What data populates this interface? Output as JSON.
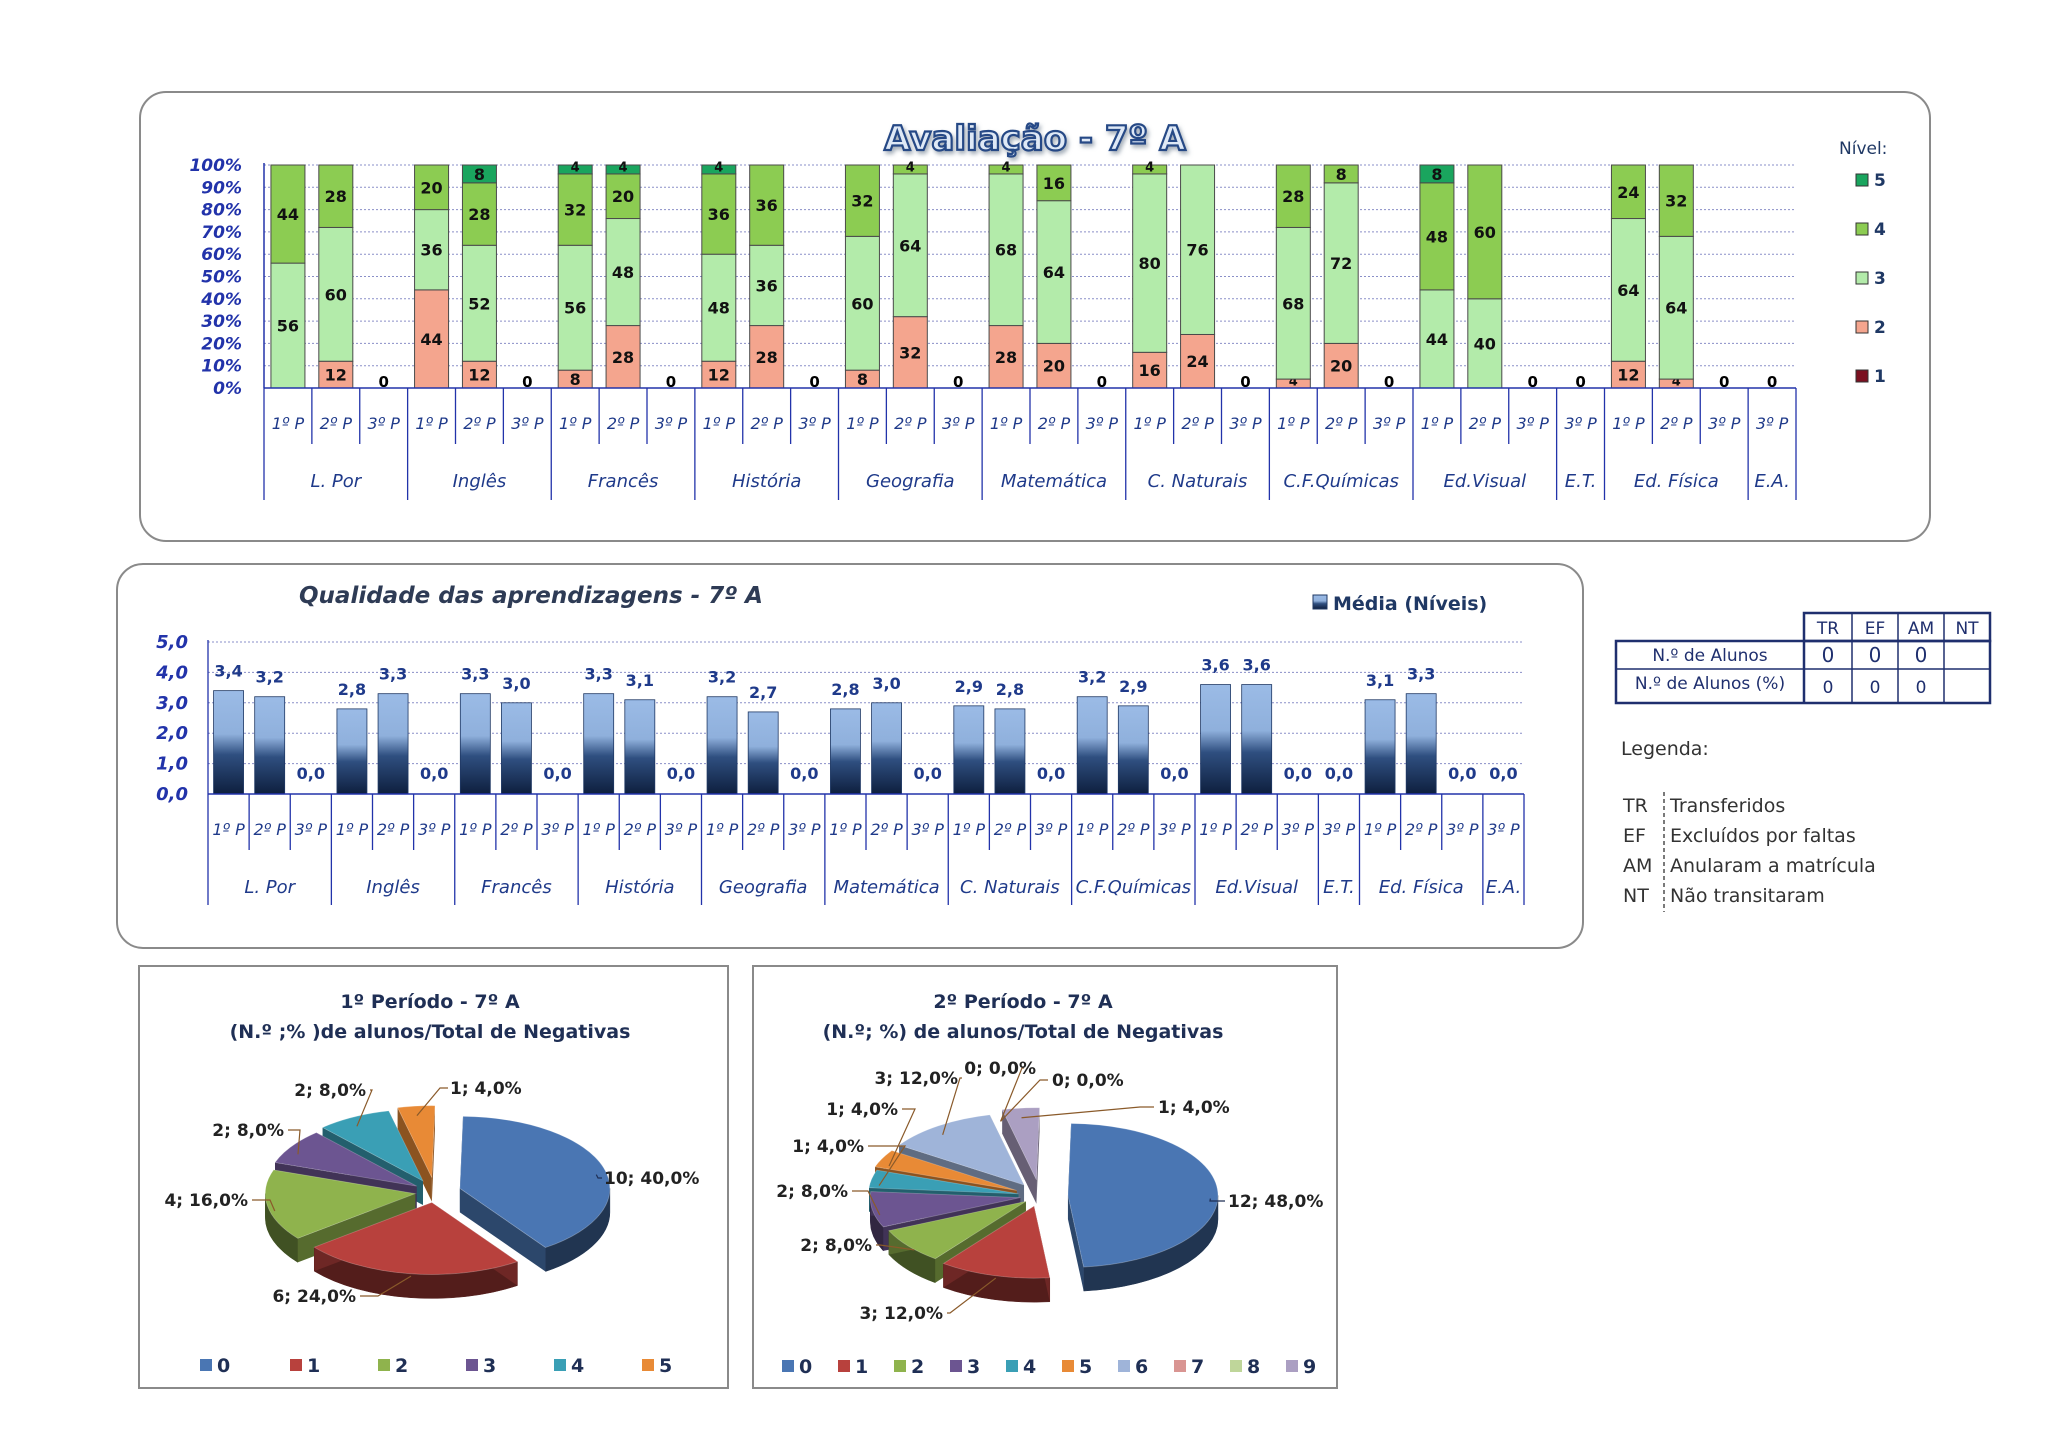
{
  "chart_data": [
    {
      "type": "bar",
      "subtype": "stacked-100-percent",
      "title": "Avaliação  -  7º A",
      "legend_title": "Nível:",
      "legend": [
        "5",
        "4",
        "3",
        "2",
        "1"
      ],
      "yticks": [
        "100%",
        "90%",
        "80%",
        "70%",
        "60%",
        "50%",
        "40%",
        "30%",
        "20%",
        "10%",
        "0%"
      ],
      "period_labels": [
        "1º P",
        "2º P",
        "3º P"
      ],
      "colors": {
        "1": "#7b1020",
        "2": "#f4a58e",
        "3": "#b3ebaa",
        "4": "#8ccc52",
        "5": "#1aa55e"
      },
      "subjects": [
        {
          "name": "L. Por",
          "periods": [
            {
              "1": 0,
              "2": 0,
              "3": 56,
              "4": 44,
              "5": 0,
              "labels": {
                "3": "56",
                "4": "44"
              }
            },
            {
              "1": 0,
              "2": 12,
              "3": 60,
              "4": 28,
              "5": 0,
              "labels": {
                "2": "12",
                "3": "60",
                "4": "28"
              }
            },
            {
              "empty": true,
              "zero": "0"
            }
          ]
        },
        {
          "name": "Inglês",
          "periods": [
            {
              "1": 0,
              "2": 44,
              "3": 36,
              "4": 20,
              "5": 0,
              "labels": {
                "2": "44",
                "3": "36",
                "4": "20"
              }
            },
            {
              "1": 0,
              "2": 12,
              "3": 52,
              "4": 28,
              "5": 8,
              "labels": {
                "2": "12",
                "3": "52",
                "4": "28",
                "5": "8"
              }
            },
            {
              "empty": true,
              "zero": "0"
            }
          ]
        },
        {
          "name": "Francês",
          "periods": [
            {
              "1": 0,
              "2": 8,
              "3": 56,
              "4": 32,
              "5": 4,
              "labels": {
                "2": "8",
                "3": "56",
                "4": "32",
                "5": "4"
              }
            },
            {
              "1": 0,
              "2": 28,
              "3": 48,
              "4": 20,
              "5": 4,
              "labels": {
                "2": "28",
                "3": "48",
                "4": "20",
                "5": "4"
              }
            },
            {
              "empty": true,
              "zero": "0"
            }
          ]
        },
        {
          "name": "História",
          "periods": [
            {
              "1": 0,
              "2": 12,
              "3": 48,
              "4": 36,
              "5": 4,
              "labels": {
                "2": "12",
                "3": "48",
                "4": "36",
                "5": "4"
              }
            },
            {
              "1": 0,
              "2": 28,
              "3": 36,
              "4": 36,
              "5": 0,
              "labels": {
                "2": "28",
                "3": "36",
                "4": "36"
              }
            },
            {
              "empty": true,
              "zero": "0"
            }
          ]
        },
        {
          "name": "Geografia",
          "periods": [
            {
              "1": 0,
              "2": 8,
              "3": 60,
              "4": 32,
              "5": 0,
              "labels": {
                "2": "8",
                "3": "60",
                "4": "32"
              }
            },
            {
              "1": 0,
              "2": 32,
              "3": 64,
              "4": 4,
              "5": 0,
              "labels": {
                "2": "32",
                "3": "64",
                "4": "4"
              }
            },
            {
              "empty": true,
              "zero": "0"
            }
          ]
        },
        {
          "name": "Matemática",
          "periods": [
            {
              "1": 0,
              "2": 28,
              "3": 68,
              "4": 4,
              "5": 0,
              "labels": {
                "2": "28",
                "3": "68",
                "4": "4"
              }
            },
            {
              "1": 0,
              "2": 20,
              "3": 64,
              "4": 16,
              "5": 0,
              "labels": {
                "2": "20",
                "3": "64",
                "4": "16"
              }
            },
            {
              "empty": true,
              "zero": "0"
            }
          ]
        },
        {
          "name": "C. Naturais",
          "periods": [
            {
              "1": 0,
              "2": 16,
              "3": 80,
              "4": 4,
              "5": 0,
              "labels": {
                "2": "16",
                "3": "80",
                "4": "4"
              }
            },
            {
              "1": 0,
              "2": 24,
              "3": 76,
              "4": 0,
              "5": 0,
              "labels": {
                "2": "24",
                "3": "76"
              }
            },
            {
              "empty": true,
              "zero": "0"
            }
          ]
        },
        {
          "name": "C.F.Químicas",
          "periods": [
            {
              "1": 0,
              "2": 4,
              "3": 68,
              "4": 28,
              "5": 0,
              "labels": {
                "2": "4",
                "3": "68",
                "4": "28"
              }
            },
            {
              "1": 0,
              "2": 20,
              "3": 72,
              "4": 8,
              "5": 0,
              "labels": {
                "2": "20",
                "3": "72",
                "4": "8"
              }
            },
            {
              "empty": true,
              "zero": "0"
            }
          ]
        },
        {
          "name": "Ed.Visual",
          "periods": [
            {
              "1": 0,
              "2": 0,
              "3": 44,
              "4": 48,
              "5": 8,
              "labels": {
                "3": "44",
                "4": "48",
                "5": "8"
              }
            },
            {
              "1": 0,
              "2": 0,
              "3": 40,
              "4": 60,
              "5": 0,
              "labels": {
                "3": "40",
                "4": "60"
              }
            },
            {
              "empty": true,
              "zero": "0"
            }
          ]
        },
        {
          "name": "E.T.",
          "periods": [
            {
              "empty": true,
              "zero": "0",
              "label": "3º P"
            }
          ]
        },
        {
          "name": "Ed. Física",
          "periods": [
            {
              "1": 0,
              "2": 12,
              "3": 64,
              "4": 24,
              "5": 0,
              "labels": {
                "2": "12",
                "3": "64",
                "4": "24"
              }
            },
            {
              "1": 0,
              "2": 4,
              "3": 64,
              "4": 32,
              "5": 0,
              "labels": {
                "2": "4",
                "3": "64",
                "4": "32"
              }
            },
            {
              "empty": true,
              "zero": "0"
            }
          ]
        },
        {
          "name": "E.A.",
          "periods": [
            {
              "empty": true,
              "zero": "0",
              "label": "3º P"
            }
          ]
        }
      ]
    },
    {
      "type": "bar",
      "title": "Qualidade das aprendizagens  -  7º A",
      "legend": "Média (Níveis)",
      "yticks": [
        "5,0",
        "4,0",
        "3,0",
        "2,0",
        "1,0",
        "0,0"
      ],
      "ylim": [
        0,
        5
      ],
      "period_labels": [
        "1º P",
        "2º P",
        "3º P"
      ],
      "subjects": [
        {
          "name": "L. Por",
          "values": [
            3.4,
            3.2,
            0
          ],
          "labels": [
            "3,4",
            "3,2",
            "0,0"
          ]
        },
        {
          "name": "Inglês",
          "values": [
            2.8,
            3.3,
            0
          ],
          "labels": [
            "2,8",
            "3,3",
            "0,0"
          ]
        },
        {
          "name": "Francês",
          "values": [
            3.3,
            3.0,
            0
          ],
          "labels": [
            "3,3",
            "3,0",
            "0,0"
          ]
        },
        {
          "name": "História",
          "values": [
            3.3,
            3.1,
            0
          ],
          "labels": [
            "3,3",
            "3,1",
            "0,0"
          ]
        },
        {
          "name": "Geografia",
          "values": [
            3.2,
            2.7,
            0
          ],
          "labels": [
            "3,2",
            "2,7",
            "0,0"
          ]
        },
        {
          "name": "Matemática",
          "values": [
            2.8,
            3.0,
            0
          ],
          "labels": [
            "2,8",
            "3,0",
            "0,0"
          ]
        },
        {
          "name": "C. Naturais",
          "values": [
            2.9,
            2.8,
            0
          ],
          "labels": [
            "2,9",
            "2,8",
            "0,0"
          ]
        },
        {
          "name": "C.F.Químicas",
          "values": [
            3.2,
            2.9,
            0
          ],
          "labels": [
            "3,2",
            "2,9",
            "0,0"
          ]
        },
        {
          "name": "Ed.Visual",
          "values": [
            3.6,
            3.6,
            0
          ],
          "labels": [
            "3,6",
            "3,6",
            "0,0"
          ]
        },
        {
          "name": "E.T.",
          "values": [
            0
          ],
          "labels": [
            "0,0"
          ],
          "period_labels": [
            "3º P"
          ]
        },
        {
          "name": "Ed. Física",
          "values": [
            3.1,
            3.3,
            0
          ],
          "labels": [
            "3,1",
            "3,3",
            "0,0"
          ]
        },
        {
          "name": "E.A.",
          "values": [
            0
          ],
          "labels": [
            "0,0"
          ],
          "period_labels": [
            "3º P"
          ]
        }
      ]
    },
    {
      "type": "pie",
      "title_lines": [
        "1º Período - 7º A",
        "(N.º ;% )de alunos/Total de Negativas"
      ],
      "slices": [
        {
          "category": "0",
          "value": 10,
          "label": "10; 40,0%",
          "color": "#4a76b3"
        },
        {
          "category": "1",
          "value": 6,
          "label": "6; 24,0%",
          "color": "#b8413d"
        },
        {
          "category": "2",
          "value": 4,
          "label": "4; 16,0%",
          "color": "#8fb34d"
        },
        {
          "category": "3",
          "value": 2,
          "label": "2; 8,0%",
          "color": "#6c5591"
        },
        {
          "category": "4",
          "value": 2,
          "label": "2; 8,0%",
          "color": "#3a9fb5"
        },
        {
          "category": "5",
          "value": 1,
          "label": "1; 4,0%",
          "color": "#e88a36"
        }
      ],
      "legend": [
        "0",
        "1",
        "2",
        "3",
        "4",
        "5"
      ]
    },
    {
      "type": "pie",
      "title_lines": [
        "2º Período - 7º A",
        "(N.º; %) de alunos/Total de Negativas"
      ],
      "slices": [
        {
          "category": "0",
          "value": 12,
          "label": "12; 48,0%",
          "color": "#4a76b3"
        },
        {
          "category": "1",
          "value": 3,
          "label": "3; 12,0%",
          "color": "#b8413d"
        },
        {
          "category": "2",
          "value": 2,
          "label": "2; 8,0%",
          "color": "#8fb34d"
        },
        {
          "category": "3",
          "value": 2,
          "label": "2; 8,0%",
          "color": "#6c5591"
        },
        {
          "category": "4",
          "value": 1,
          "label": "1; 4,0%",
          "color": "#3a9fb5"
        },
        {
          "category": "5",
          "value": 1,
          "label": "1; 4,0%",
          "color": "#e88a36"
        },
        {
          "category": "6",
          "value": 3,
          "label": "3; 12,0%",
          "color": "#9fb4d9"
        },
        {
          "category": "7",
          "value": 0,
          "label": "0; 0,0%",
          "color": "#d99592"
        },
        {
          "category": "8",
          "value": 0,
          "label": "0; 0,0%",
          "color": "#bfd69a"
        },
        {
          "category": "9",
          "value": 1,
          "label": "1; 4,0%",
          "color": "#ab9fc2"
        }
      ],
      "legend": [
        "0",
        "1",
        "2",
        "3",
        "4",
        "5",
        "6",
        "7",
        "8",
        "9"
      ]
    }
  ],
  "stats_table": {
    "headers": [
      "TR",
      "EF",
      "AM",
      "NT"
    ],
    "rows": [
      {
        "label": "N.º de Alunos",
        "values": [
          "0",
          "0",
          "0",
          ""
        ]
      },
      {
        "label": "N.º de Alunos (%)",
        "values": [
          "0",
          "0",
          "0",
          ""
        ]
      }
    ]
  },
  "legenda": {
    "title": "Legenda:",
    "items": [
      {
        "code": "TR",
        "text": "Transferidos"
      },
      {
        "code": "EF",
        "text": "Excluídos por faltas"
      },
      {
        "code": "AM",
        "text": "Anularam a matrícula"
      },
      {
        "code": "NT",
        "text": "Não transitaram"
      }
    ]
  }
}
